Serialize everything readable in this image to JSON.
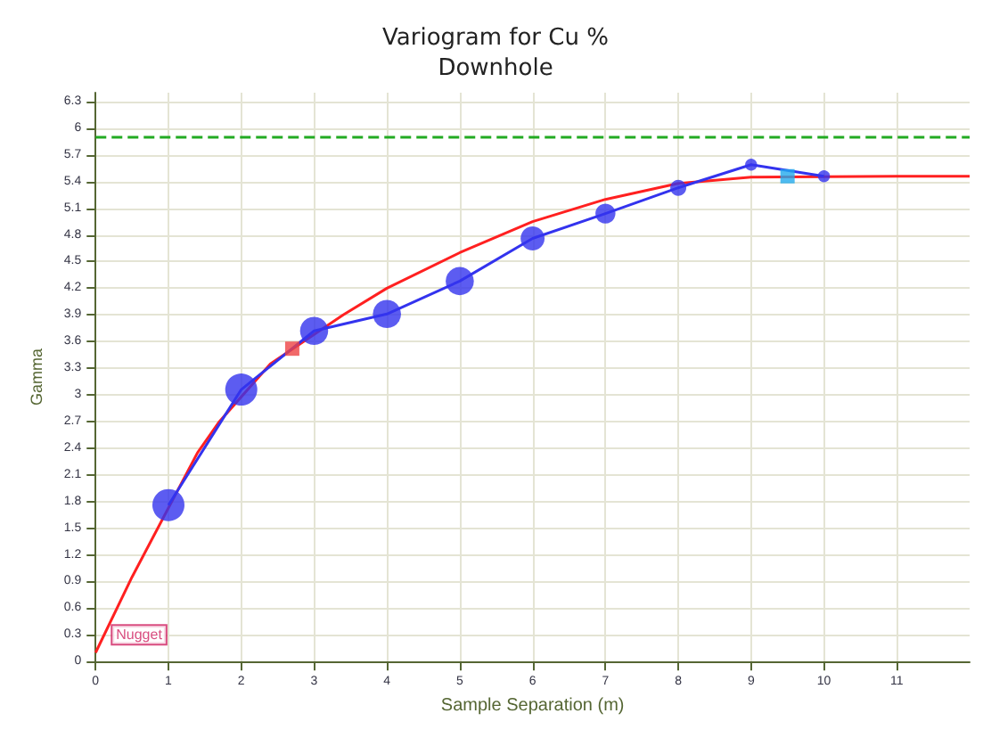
{
  "chart_data": {
    "type": "line",
    "title": "Variogram for Cu %",
    "subtitle": "Downhole",
    "xlabel": "Sample Separation (m)",
    "ylabel": "Gamma",
    "xlim": [
      0,
      12
    ],
    "xticks": [
      0,
      1,
      2,
      3,
      4,
      5,
      6,
      7,
      8,
      9,
      10,
      11
    ],
    "ylim": [
      0,
      6.4
    ],
    "yticks": [
      0,
      0.3,
      0.6,
      0.9,
      1.2,
      1.5,
      1.8,
      2.1,
      2.4,
      2.7,
      3,
      3.3,
      3.6,
      3.9,
      4.2,
      4.5,
      4.8,
      5.1,
      5.4,
      5.7,
      6,
      6.3
    ],
    "grid": true,
    "series": [
      {
        "color": "#ff2020",
        "marker": "none",
        "x": [
          0,
          0.5,
          1.4,
          1.7,
          2.4,
          3.4,
          4,
          5,
          6,
          7,
          8,
          9,
          11,
          12
        ],
        "values": [
          0.1,
          0.95,
          2.35,
          2.7,
          3.35,
          3.9,
          4.2,
          4.6,
          4.95,
          5.2,
          5.38,
          5.45,
          5.46,
          5.46
        ]
      },
      {
        "color": "#3333ee",
        "marker": "none",
        "x": [
          1,
          2,
          3,
          4,
          5,
          6,
          7,
          8,
          9,
          10
        ],
        "values": [
          1.76,
          3.06,
          3.72,
          3.91,
          4.28,
          4.76,
          5.04,
          5.33,
          5.59,
          5.46
        ]
      },
      {
        "type": "bubble",
        "color": "#3333ee",
        "x": [
          1,
          2,
          3,
          4,
          5,
          6,
          7,
          8,
          9,
          10
        ],
        "values": [
          1.76,
          3.06,
          3.72,
          3.91,
          4.28,
          4.76,
          5.04,
          5.33,
          5.59,
          5.46
        ],
        "sizes": [
          1,
          1,
          0.77,
          0.77,
          0.77,
          0.56,
          0.39,
          0.25,
          0.14,
          0.14
        ]
      },
      {
        "type": "scatter",
        "color": "#ee4444",
        "marker": "square",
        "x": [
          2.7
        ],
        "values": [
          3.52
        ]
      },
      {
        "type": "scatter",
        "color": "#22aaee",
        "marker": "square",
        "x": [
          9.5
        ],
        "values": [
          5.46
        ]
      }
    ],
    "ref_lines": [
      {
        "axis": "y",
        "value": 5.9,
        "color": "#22aa22",
        "line_style": "dashed"
      }
    ],
    "annotations": [
      {
        "text": "Nugget",
        "x": 0,
        "y": 0.1
      }
    ]
  }
}
